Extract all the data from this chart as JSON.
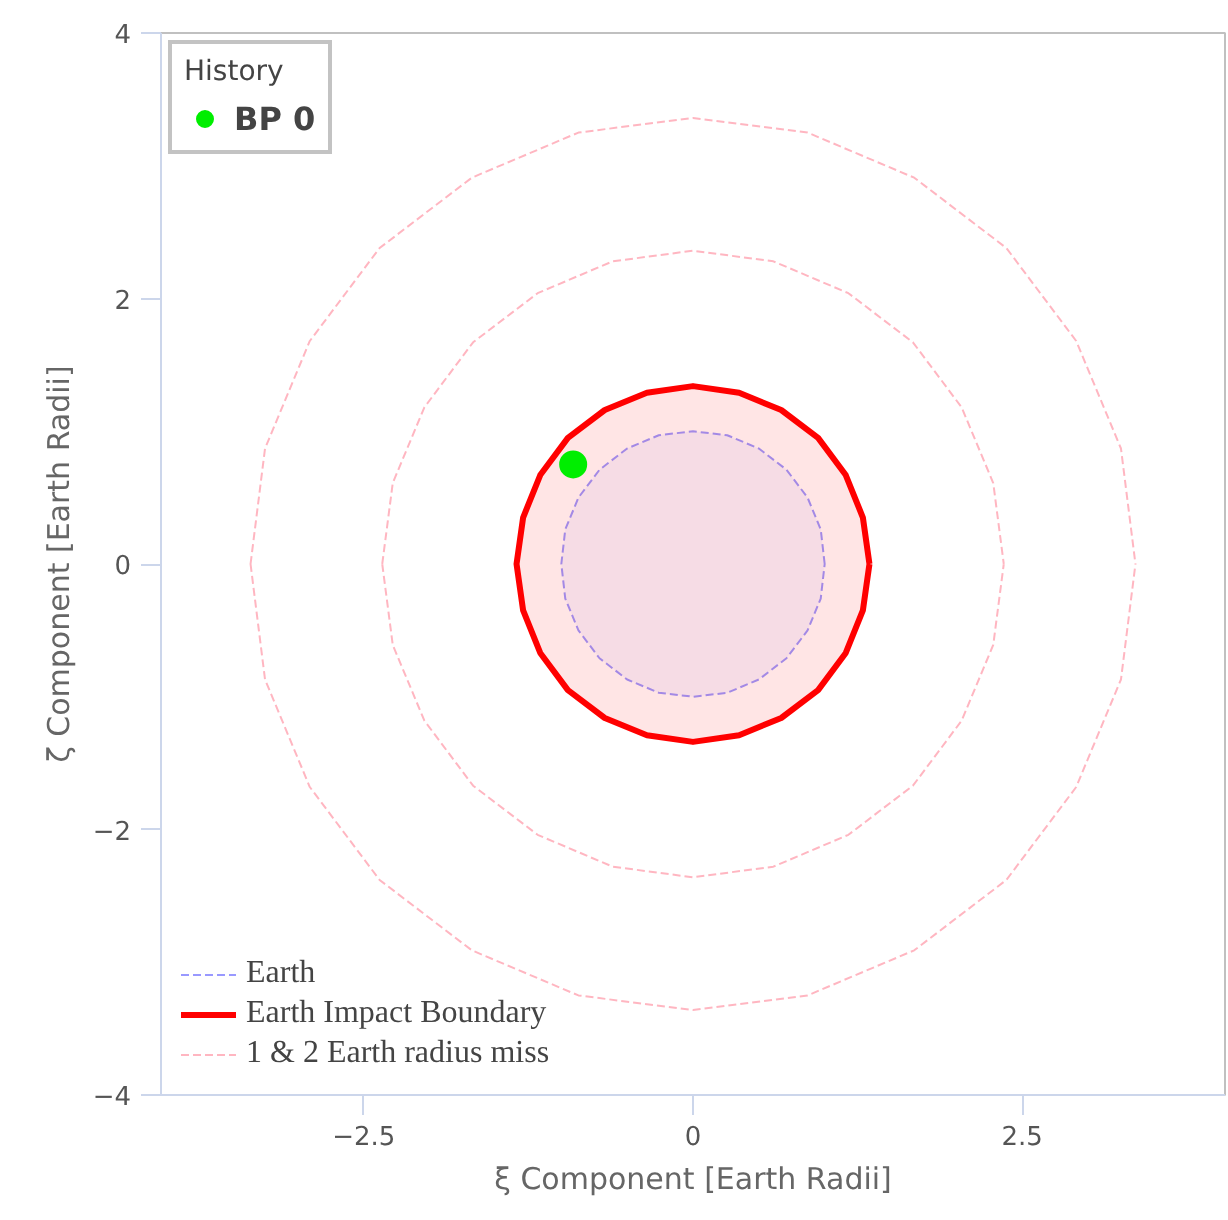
{
  "chart_data": {
    "type": "line",
    "xlabel": "ξ Component [Earth Radii]",
    "ylabel": "ζ Component [Earth Radii]",
    "legend_title": "History",
    "xlim": [
      -4.04,
      4.04
    ],
    "ylim": [
      -4,
      4
    ],
    "xticks": [
      -2.5,
      0,
      2.5
    ],
    "yticks": [
      -4,
      -2,
      0,
      2,
      4
    ],
    "grid": false,
    "legend": "bottom left",
    "series": [
      {
        "name": "Earth",
        "type": "area",
        "color": "#9999ff",
        "line_style": "dashed",
        "x": [
          1,
          0.97,
          0.87,
          0.71,
          0.5,
          0.26,
          0,
          -0.26,
          -0.5,
          -0.71,
          -0.87,
          -0.97,
          -1,
          -0.97,
          -0.87,
          -0.71,
          -0.5,
          -0.26,
          0,
          0.26,
          0.5,
          0.71,
          0.87,
          0.97,
          1
        ],
        "values": [
          0,
          0.26,
          0.5,
          0.71,
          0.87,
          0.97,
          1,
          0.97,
          0.87,
          0.71,
          0.5,
          0.26,
          0,
          -0.26,
          -0.5,
          -0.71,
          -0.87,
          -0.97,
          -1,
          -0.97,
          -0.87,
          -0.71,
          -0.5,
          -0.26,
          0
        ]
      },
      {
        "name": "Earth Impact Boundary",
        "type": "area",
        "color": "#ff0000",
        "line_style": "solid",
        "x": [
          1.34,
          1.29,
          1.16,
          0.95,
          0.67,
          0.35,
          0,
          -0.35,
          -0.67,
          -0.95,
          -1.16,
          -1.29,
          -1.34,
          -1.29,
          -1.16,
          -0.95,
          -0.67,
          -0.35,
          0,
          0.35,
          0.67,
          0.95,
          1.16,
          1.29,
          1.34
        ],
        "values": [
          0,
          0.35,
          0.67,
          0.95,
          1.16,
          1.29,
          1.34,
          1.29,
          1.16,
          0.95,
          0.67,
          0.35,
          0,
          -0.35,
          -0.67,
          -0.95,
          -1.16,
          -1.29,
          -1.34,
          -1.29,
          -1.16,
          -0.95,
          -0.67,
          -0.35,
          0
        ]
      },
      {
        "name": "1 & 2 Earth radius miss",
        "color": "#ffb6c1",
        "line_style": "dashed",
        "x": [
          -2.36,
          -2.28,
          -2.04,
          -1.67,
          -1.18,
          -0.61,
          0,
          0.61,
          1.18,
          1.67,
          2.04,
          2.28,
          2.36,
          null,
          -2.36,
          -2.28,
          -2.04,
          -1.67,
          -1.18,
          -0.61,
          0,
          0.61,
          1.18,
          1.67,
          2.04,
          2.28,
          2.36,
          null,
          -3.36,
          -3.25,
          -2.91,
          -2.38,
          -1.68,
          -0.87,
          0,
          0.87,
          1.68,
          2.38,
          2.91,
          3.25,
          3.36,
          null,
          -3.36,
          -3.25,
          -2.91,
          -2.38,
          -1.68,
          -0.87,
          0,
          0.87,
          1.68,
          2.38,
          2.91,
          3.25,
          3.36
        ],
        "values": [
          0,
          0.61,
          1.18,
          1.67,
          2.04,
          2.28,
          2.36,
          2.28,
          2.04,
          1.67,
          1.18,
          0.61,
          0,
          null,
          0,
          -0.61,
          -1.18,
          -1.67,
          -2.04,
          -2.28,
          -2.36,
          -2.28,
          -2.04,
          -1.67,
          -1.18,
          -0.61,
          0,
          null,
          0,
          0.87,
          1.68,
          2.38,
          2.91,
          3.25,
          3.36,
          3.25,
          2.91,
          2.38,
          1.68,
          0.87,
          0,
          null,
          0,
          -0.87,
          -1.68,
          -2.38,
          -2.91,
          -3.25,
          -3.36,
          -3.25,
          -2.91,
          -2.38,
          -1.68,
          -0.87,
          0
        ]
      },
      {
        "name": "BP 0",
        "type": "scatter",
        "color": "#00ee00",
        "marker": "circle",
        "x": [
          -0.91
        ],
        "values": [
          0.75
        ]
      }
    ]
  }
}
